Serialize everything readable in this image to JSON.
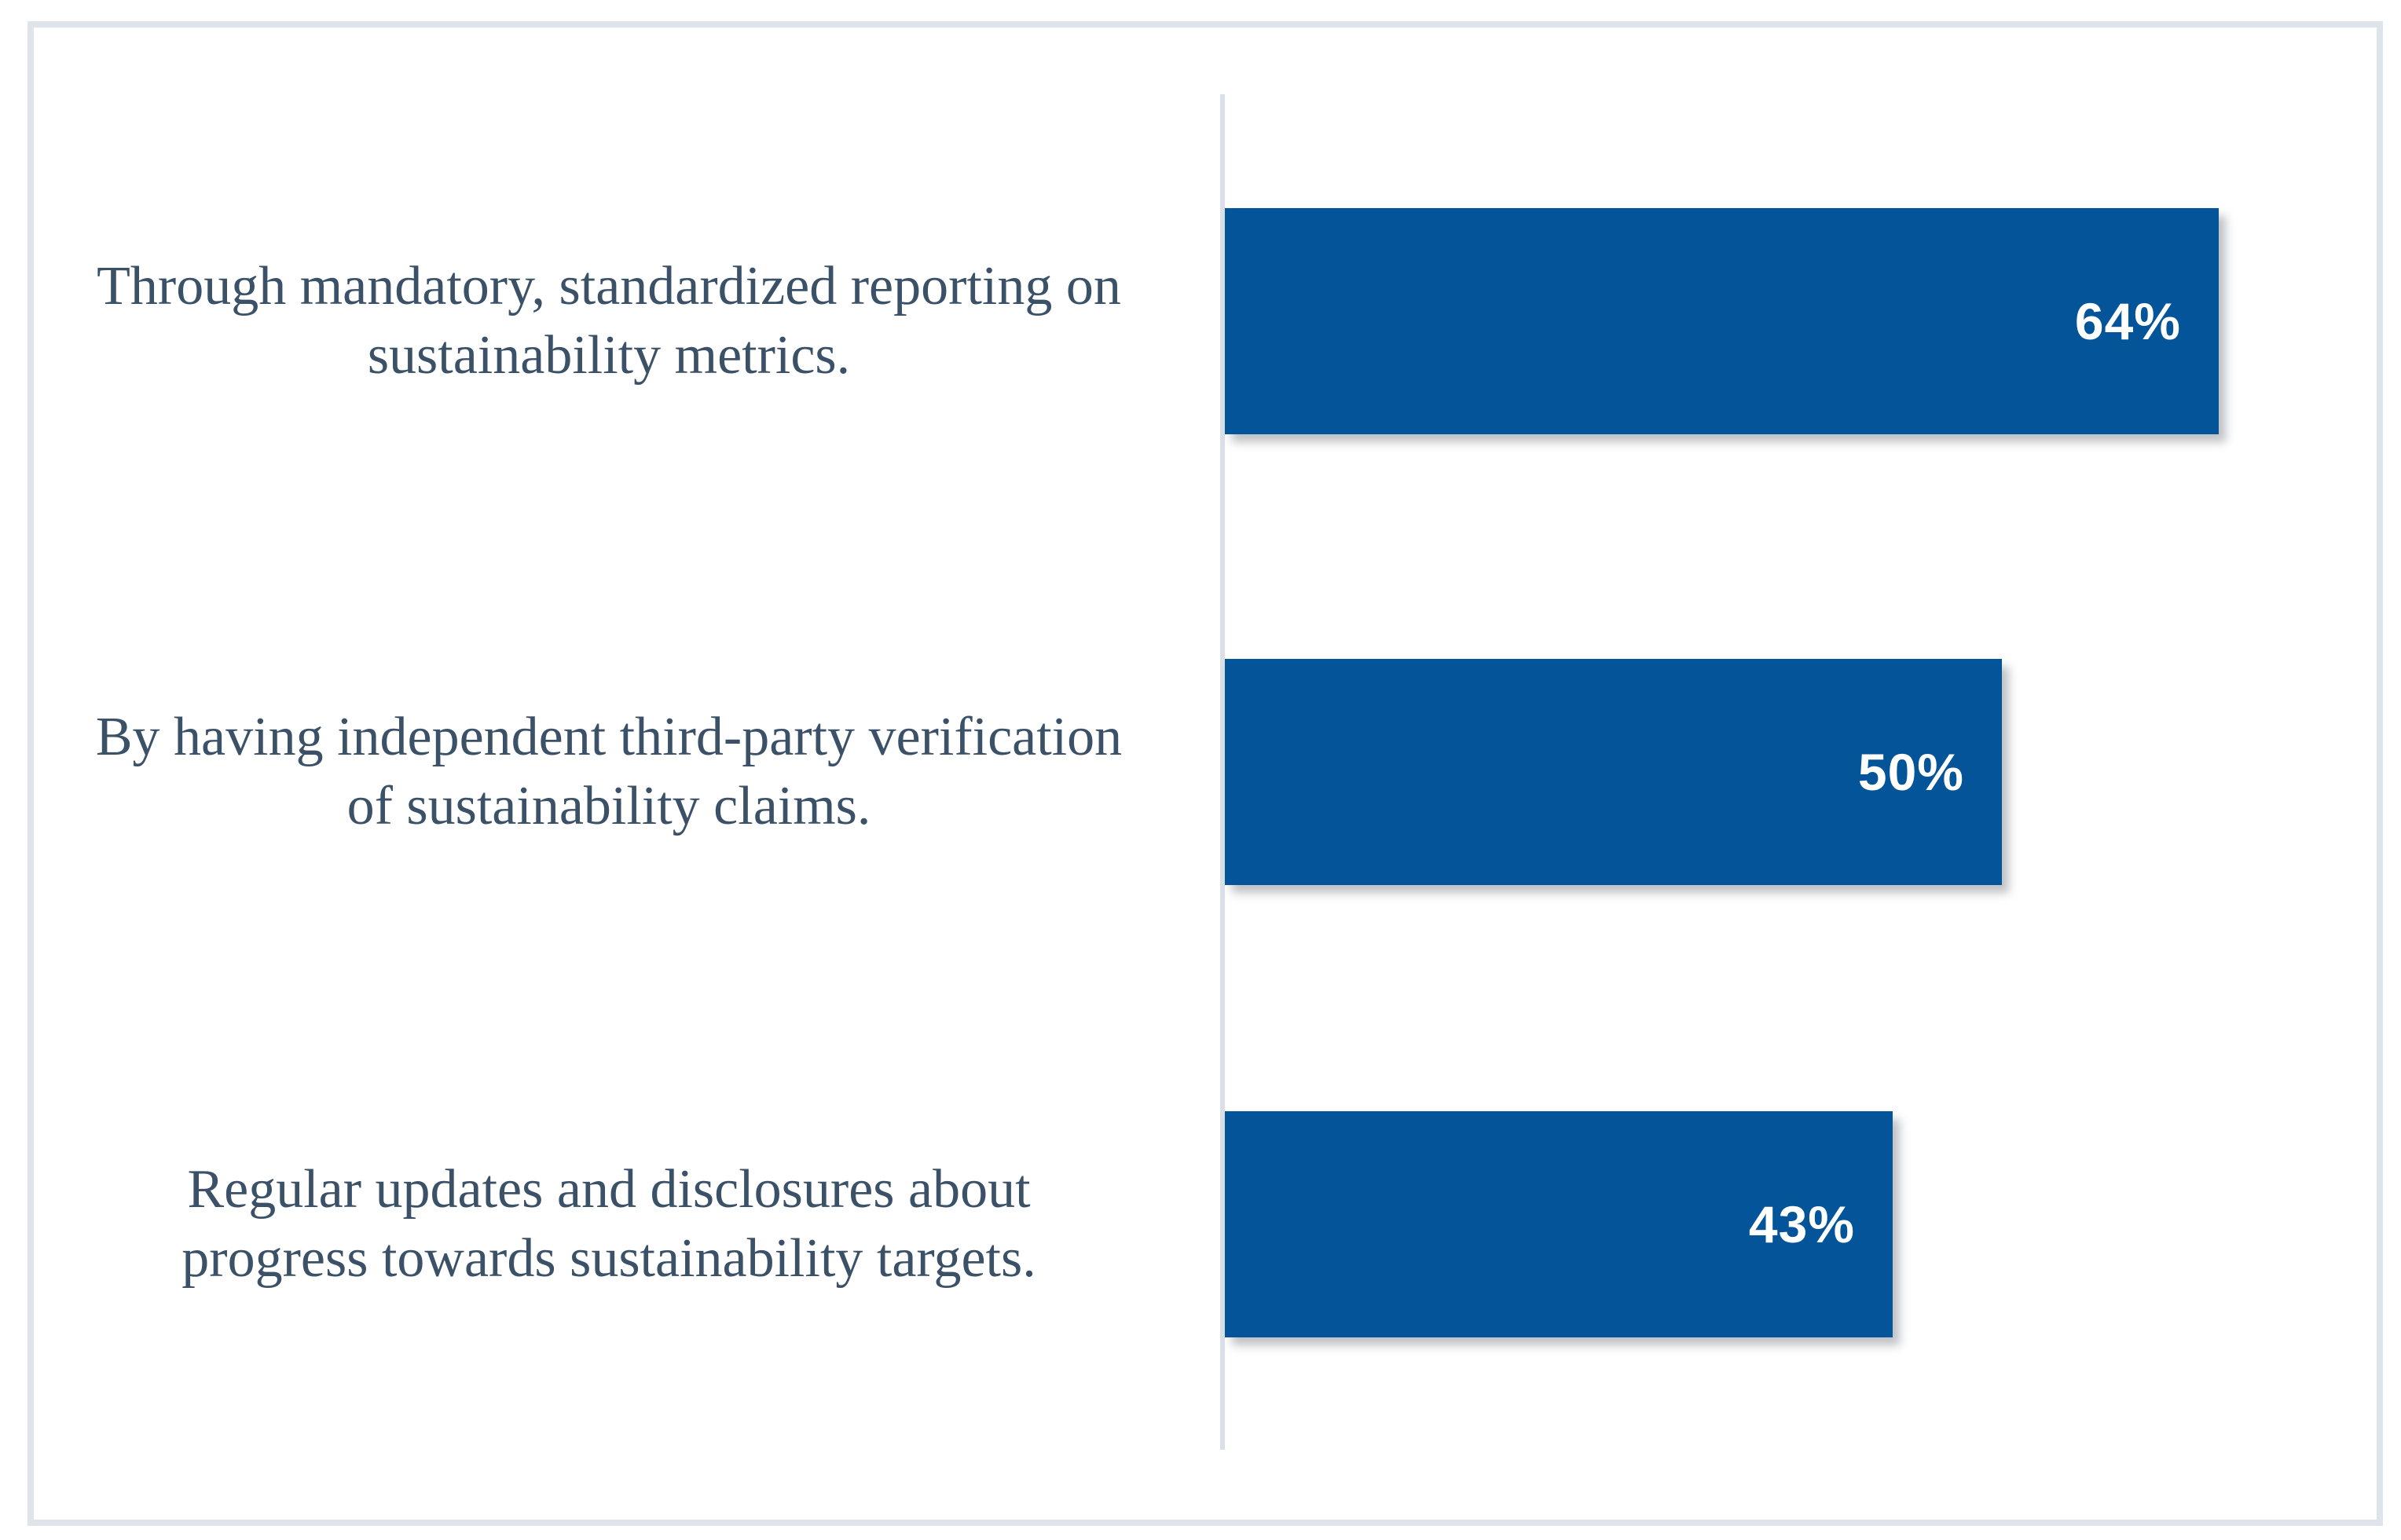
{
  "chart_data": {
    "type": "bar",
    "orientation": "horizontal",
    "title": "",
    "xlabel": "",
    "ylabel": "",
    "xlim": [
      0,
      70
    ],
    "grid": false,
    "legend": false,
    "categories": [
      "Through mandatory, standardized reporting on sustainability metrics.",
      "By having independent third-party verification of sustainability claims.",
      "Regular updates and disclosures about progress towards sustainability targets."
    ],
    "values": [
      64,
      50,
      43
    ],
    "rows": [
      {
        "label_lines": [
          "Through mandatory, standardized reporting on",
          "sustainability metrics."
        ],
        "value": 64,
        "value_label": "64%"
      },
      {
        "label_lines": [
          "By having independent third-party verification",
          "of sustainability claims."
        ],
        "value": 50,
        "value_label": "50%"
      },
      {
        "label_lines": [
          "Regular updates and disclosures about",
          "progress towards sustainability targets."
        ],
        "value": 43,
        "value_label": "43%"
      }
    ]
  },
  "colors": {
    "bar": "#045499",
    "label_text": "#3B5168",
    "value_text": "#FFFFFF",
    "axis_line": "#D9E0E8",
    "frame_border": "#DFE4EA",
    "background": "#FFFFFF"
  }
}
